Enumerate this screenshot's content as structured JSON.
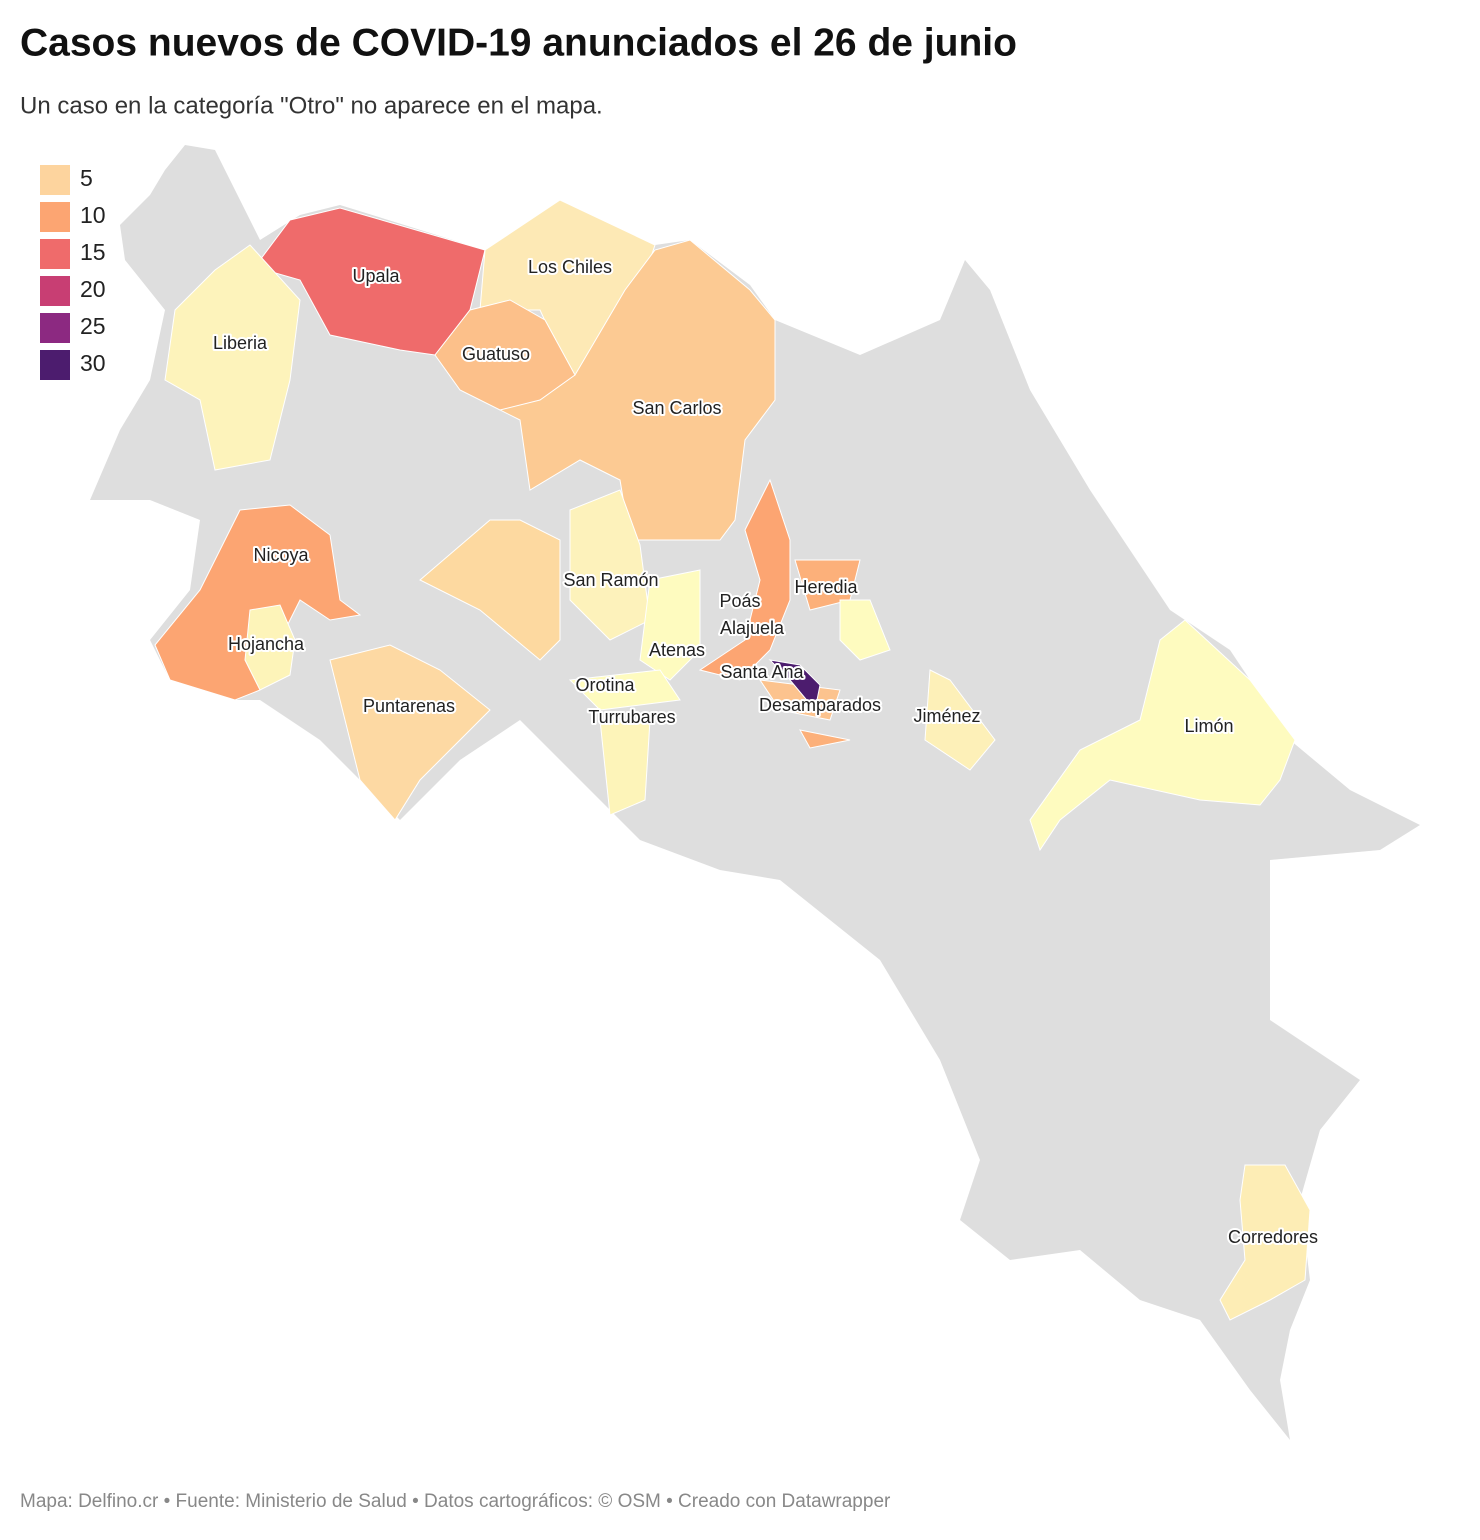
{
  "header": {
    "title": "Casos nuevos de COVID-19 anunciados el 26 de junio",
    "subtitle": "Un caso en la categoría \"Otro\" no aparece en el mapa."
  },
  "legend": {
    "items": [
      {
        "label": "5",
        "color": "#fdd49e"
      },
      {
        "label": "10",
        "color": "#fca572"
      },
      {
        "label": "15",
        "color": "#ef6b6b"
      },
      {
        "label": "20",
        "color": "#c83e73"
      },
      {
        "label": "25",
        "color": "#8c2981"
      },
      {
        "label": "30",
        "color": "#4c1c6e"
      }
    ]
  },
  "map": {
    "labels": [
      "Upala",
      "Los Chiles",
      "Liberia",
      "Guatuso",
      "San Carlos",
      "Nicoya",
      "Hojancha",
      "Puntarenas",
      "San Ramón",
      "Poás",
      "Heredia",
      "Alajuela",
      "Atenas",
      "Santa Ana",
      "Orotina",
      "Turrubares",
      "Desamparados",
      "Jiménez",
      "Limón",
      "Corredores"
    ]
  },
  "footer": "Mapa: Delfino.cr • Fuente: Ministerio de Salud • Datos cartográficos: © OSM • Creado con Datawrapper"
}
